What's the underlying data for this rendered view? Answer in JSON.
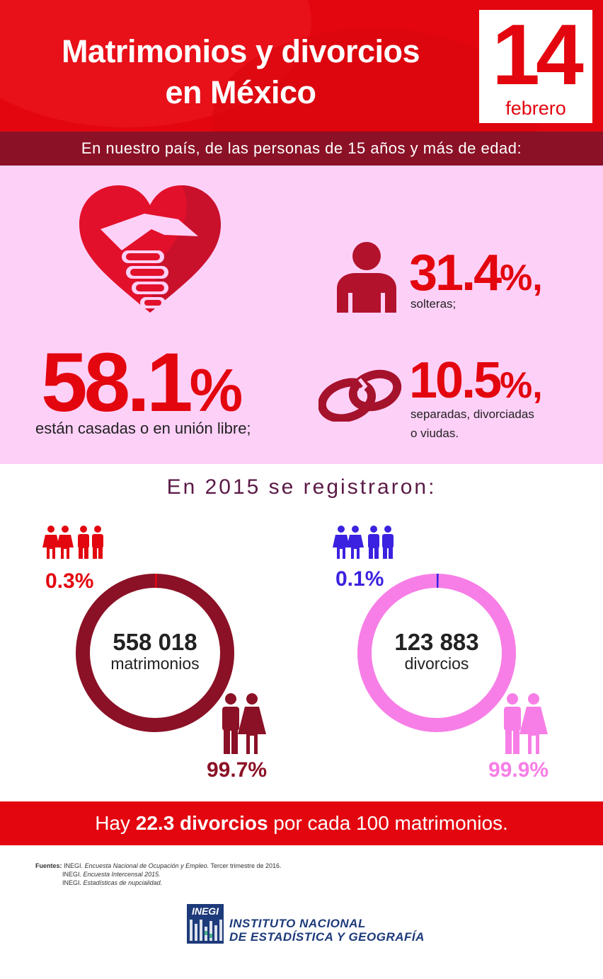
{
  "header": {
    "title_line1": "Matrimonios y divorcios",
    "title_line2": "en México",
    "date_day": "14",
    "date_month": "febrero"
  },
  "subheader": "En nuestro país, de las personas de 15 años y más de edad:",
  "stats": {
    "married": {
      "value": "58.1",
      "unit": "%",
      "label": "están casadas o en unión libre;"
    },
    "single": {
      "value": "31.4",
      "unit": "%,",
      "label": "solteras;"
    },
    "separated": {
      "value": "10.5",
      "unit": "%,",
      "label_line1": "separadas, divorciadas",
      "label_line2": "o viudas."
    }
  },
  "registered": {
    "title": "En 2015 se registraron:",
    "marriages": {
      "count": "558 018",
      "label": "matrimonios",
      "same_sex_pct": "0.3%",
      "same_sex_fraction": 0.003,
      "hetero_pct": "99.7%",
      "ring_color": "#8b1126",
      "accent_color": "#e3060f"
    },
    "divorces": {
      "count": "123 883",
      "label": "divorcios",
      "same_sex_pct": "0.1%",
      "same_sex_fraction": 0.001,
      "hetero_pct": "99.9%",
      "ring_color": "#f77ee6",
      "accent_color": "#3b22e0"
    }
  },
  "bottom_bar": {
    "prefix": "Hay ",
    "highlight": "22.3 divorcios",
    "suffix": " por cada 100 matrimonios."
  },
  "sources": {
    "label": "Fuentes:",
    "line1_org": "INEGI.",
    "line1_title": "Encuesta Nacional de Ocupación y Empleo.",
    "line1_rest": "Tercer trimestre de 2016.",
    "line2_org": "INEGI.",
    "line2_title": "Encuesta Intercensal 2015.",
    "line3_org": "INEGI.",
    "line3_title": "Estadísticas de nupcialidad."
  },
  "logo": {
    "acronym": "INEGI",
    "line1": "INSTITUTO NACIONAL",
    "line2": "DE ESTADÍSTICA Y GEOGRAFÍA"
  },
  "colors": {
    "brand_red": "#e3060f",
    "dark_red": "#8b1126",
    "pink_panel": "#fdd0f8",
    "pink_ring": "#f77ee6",
    "purple": "#3b22e0",
    "title_purple": "#5b1a47"
  },
  "icons": [
    "heart-handshake-icon",
    "person-icon",
    "broken-rings-icon",
    "two-women-icon",
    "two-men-icon",
    "man-woman-icon"
  ]
}
